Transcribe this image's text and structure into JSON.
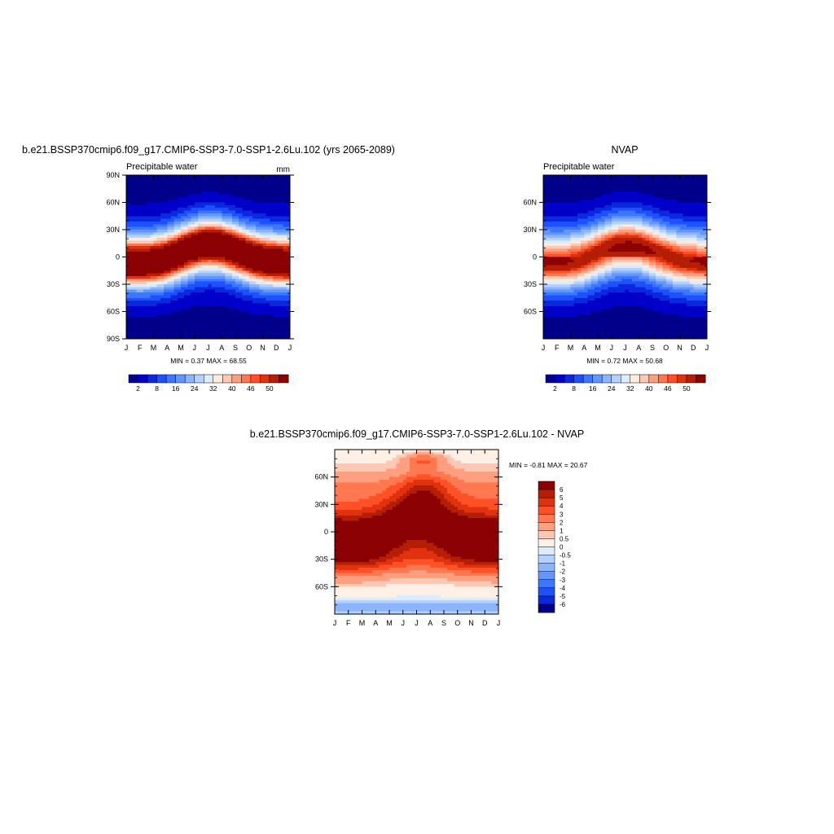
{
  "colors": {
    "palette_abs": [
      "#00008b",
      "#0000c8",
      "#0a28dc",
      "#1e50ff",
      "#3c78ff",
      "#6496ff",
      "#8cb4ff",
      "#b4d2ff",
      "#dcecff",
      "#ffeadc",
      "#ffc8b4",
      "#ff9f80",
      "#ff7850",
      "#ff5028",
      "#e0320e",
      "#b41e04",
      "#8b0000"
    ],
    "palette_diff": [
      "#00008b",
      "#0a28dc",
      "#1e50ff",
      "#3c78ff",
      "#6496ff",
      "#8cb4ff",
      "#b4d2ff",
      "#dcecff",
      "#fff0e6",
      "#ffc8b4",
      "#ff9f80",
      "#ff7850",
      "#ff5028",
      "#e0320e",
      "#b41e04",
      "#8b0000"
    ]
  },
  "chart_data": [
    {
      "type": "heatmap",
      "panel": "model",
      "title": "b.e21.BSSP370cmip6.f09_g17.CMIP6-SSP3-7.0-SSP1-2.6Lu.102 (yrs 2065-2089)",
      "left_label": "Precipitable water",
      "right_label": "mm",
      "x_ticks": [
        "J",
        "F",
        "M",
        "A",
        "M",
        "J",
        "J",
        "A",
        "S",
        "O",
        "N",
        "D",
        "J"
      ],
      "y_ticks": [
        "90N",
        "60N",
        "30N",
        "0",
        "30S",
        "60S",
        "90S"
      ],
      "y_tick_values": [
        90,
        60,
        30,
        0,
        -30,
        -60,
        -90
      ],
      "ylim": [
        -90,
        90
      ],
      "min_max": "MIN =   0.37 MAX =  68.55",
      "min": 0.37,
      "max": 68.55,
      "colorbar_labels": [
        "2",
        "8",
        "16",
        "24",
        "32",
        "40",
        "46",
        "50"
      ],
      "colorbar_levels": 17
    },
    {
      "type": "heatmap",
      "panel": "obs",
      "title": "NVAP",
      "left_label": "Precipitable water",
      "right_label": "",
      "x_ticks": [
        "J",
        "F",
        "M",
        "A",
        "M",
        "J",
        "J",
        "A",
        "S",
        "O",
        "N",
        "D",
        "J"
      ],
      "y_ticks": [
        "60N",
        "30N",
        "0",
        "30S",
        "60S"
      ],
      "y_tick_values": [
        60,
        30,
        0,
        -30,
        -60
      ],
      "ylim": [
        -90,
        90
      ],
      "min_max": "MIN =   0.72 MAX =  50.68",
      "min": 0.72,
      "max": 50.68,
      "colorbar_labels": [
        "2",
        "8",
        "16",
        "24",
        "32",
        "40",
        "46",
        "50"
      ],
      "colorbar_levels": 17
    },
    {
      "type": "heatmap",
      "panel": "difference",
      "title": "b.e21.BSSP370cmip6.f09_g17.CMIP6-SSP3-7.0-SSP1-2.6Lu.102 - NVAP",
      "x_ticks": [
        "J",
        "F",
        "M",
        "A",
        "M",
        "J",
        "J",
        "A",
        "S",
        "O",
        "N",
        "D",
        "J"
      ],
      "y_ticks": [
        "60N",
        "30N",
        "0",
        "30S",
        "60S"
      ],
      "y_tick_values": [
        60,
        30,
        0,
        -30,
        -60
      ],
      "ylim": [
        -90,
        90
      ],
      "min_max": "MIN =  -0.81 MAX =  20.67",
      "min": -0.81,
      "max": 20.67,
      "colorbar_labels": [
        "6",
        "5",
        "4",
        "3",
        "2",
        "1",
        "0.5",
        "0",
        "-0.5",
        "-1",
        "-2",
        "-3",
        "-4",
        "-5",
        "-6"
      ],
      "colorbar_levels": 16
    }
  ]
}
